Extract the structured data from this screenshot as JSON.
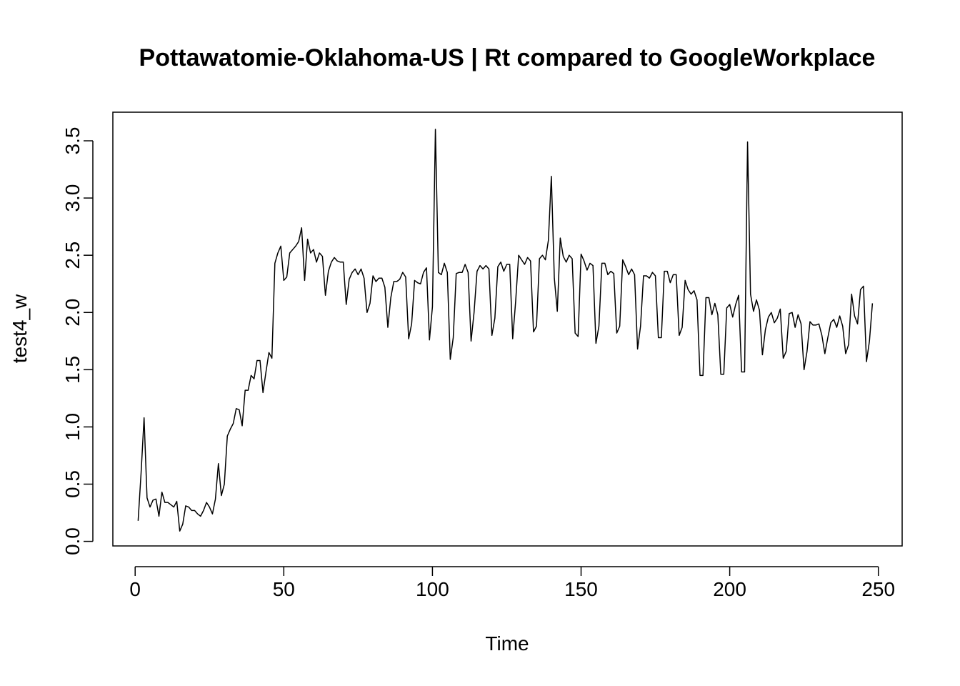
{
  "chart_data": {
    "type": "line",
    "title": "Pottawatomie-Oklahoma-US | Rt compared to GoogleWorkplace",
    "xlabel": "Time",
    "ylabel": "test4_w",
    "xlim": [
      -7.5,
      258
    ],
    "ylim": [
      -0.04,
      3.75
    ],
    "xticks": [
      0,
      50,
      100,
      150,
      200,
      250
    ],
    "yticks": [
      0.0,
      0.5,
      1.0,
      1.5,
      2.0,
      2.5,
      3.0,
      3.5
    ],
    "xtick_labels": [
      "0",
      "50",
      "100",
      "150",
      "200",
      "250"
    ],
    "ytick_labels": [
      "0.0",
      "0.5",
      "1.0",
      "1.5",
      "2.0",
      "2.5",
      "3.0",
      "3.5"
    ],
    "grid": false,
    "legend": "none",
    "series": [
      {
        "x": [
          1,
          2,
          3,
          4,
          5,
          6,
          7,
          8,
          9,
          10,
          11,
          12,
          13,
          14,
          15,
          16,
          17,
          18,
          19,
          20,
          21,
          22,
          23,
          24,
          25,
          26,
          27,
          28,
          29,
          30,
          31,
          32,
          33,
          34,
          35,
          36,
          37,
          38,
          39,
          40,
          41,
          42,
          43,
          44,
          45,
          46,
          47,
          48,
          49,
          50,
          51,
          52,
          53,
          54,
          55,
          56,
          57,
          58,
          59,
          60,
          61,
          62,
          63,
          64,
          65,
          66,
          67,
          68,
          69,
          70,
          71,
          72,
          73,
          74,
          75,
          76,
          77,
          78,
          79,
          80,
          81,
          82,
          83,
          84,
          85,
          86,
          87,
          88,
          89,
          90,
          91,
          92,
          93,
          94,
          95,
          96,
          97,
          98,
          99,
          100,
          101,
          102,
          103,
          104,
          105,
          106,
          107,
          108,
          109,
          110,
          111,
          112,
          113,
          114,
          115,
          116,
          117,
          118,
          119,
          120,
          121,
          122,
          123,
          124,
          125,
          126,
          127,
          128,
          129,
          130,
          131,
          132,
          133,
          134,
          135,
          136,
          137,
          138,
          139,
          140,
          141,
          142,
          143,
          144,
          145,
          146,
          147,
          148,
          149,
          150,
          151,
          152,
          153,
          154,
          155,
          156,
          157,
          158,
          159,
          160,
          161,
          162,
          163,
          164,
          165,
          166,
          167,
          168,
          169,
          170,
          171,
          172,
          173,
          174,
          175,
          176,
          177,
          178,
          179,
          180,
          181,
          182,
          183,
          184,
          185,
          186,
          187,
          188,
          189,
          190,
          191,
          192,
          193,
          194,
          195,
          196,
          197,
          198,
          199,
          200,
          201,
          202,
          203,
          204,
          205,
          206,
          207,
          208,
          209,
          210,
          211,
          212,
          213,
          214,
          215,
          216,
          217,
          218,
          219,
          220,
          221,
          222,
          223,
          224,
          225,
          226,
          227,
          228,
          229,
          230,
          231,
          232,
          233,
          234,
          235,
          236,
          237,
          238,
          239,
          240,
          241,
          242,
          243,
          244,
          245,
          246,
          247,
          248
        ],
        "y": [
          0.18,
          0.6,
          1.08,
          0.38,
          0.3,
          0.36,
          0.37,
          0.22,
          0.43,
          0.34,
          0.34,
          0.32,
          0.3,
          0.35,
          0.09,
          0.15,
          0.31,
          0.3,
          0.27,
          0.27,
          0.24,
          0.22,
          0.27,
          0.34,
          0.3,
          0.24,
          0.37,
          0.68,
          0.4,
          0.5,
          0.92,
          0.98,
          1.03,
          1.16,
          1.15,
          1.01,
          1.32,
          1.32,
          1.45,
          1.42,
          1.58,
          1.58,
          1.3,
          1.48,
          1.65,
          1.6,
          2.43,
          2.52,
          2.58,
          2.28,
          2.31,
          2.52,
          2.55,
          2.58,
          2.62,
          2.74,
          2.28,
          2.64,
          2.52,
          2.55,
          2.44,
          2.52,
          2.49,
          2.15,
          2.36,
          2.44,
          2.48,
          2.45,
          2.44,
          2.44,
          2.07,
          2.29,
          2.35,
          2.38,
          2.33,
          2.38,
          2.3,
          2.0,
          2.08,
          2.32,
          2.27,
          2.3,
          2.3,
          2.22,
          1.87,
          2.13,
          2.27,
          2.27,
          2.29,
          2.35,
          2.31,
          1.77,
          1.9,
          2.28,
          2.26,
          2.25,
          2.35,
          2.39,
          1.76,
          2.05,
          3.6,
          2.35,
          2.33,
          2.43,
          2.35,
          1.59,
          1.78,
          2.34,
          2.35,
          2.35,
          2.42,
          2.35,
          1.75,
          2.0,
          2.36,
          2.41,
          2.38,
          2.41,
          2.38,
          1.8,
          1.95,
          2.4,
          2.44,
          2.36,
          2.42,
          2.42,
          1.77,
          2.1,
          2.5,
          2.46,
          2.42,
          2.48,
          2.45,
          1.83,
          1.88,
          2.47,
          2.5,
          2.46,
          2.63,
          3.19,
          2.3,
          2.01,
          2.65,
          2.49,
          2.44,
          2.5,
          2.47,
          1.82,
          1.79,
          2.51,
          2.45,
          2.37,
          2.43,
          2.41,
          1.73,
          1.88,
          2.43,
          2.43,
          2.33,
          2.36,
          2.34,
          1.82,
          1.88,
          2.46,
          2.4,
          2.33,
          2.38,
          2.33,
          1.68,
          1.88,
          2.32,
          2.32,
          2.3,
          2.35,
          2.32,
          1.78,
          1.78,
          2.36,
          2.36,
          2.26,
          2.33,
          2.33,
          1.8,
          1.87,
          2.28,
          2.2,
          2.16,
          2.19,
          2.11,
          1.45,
          1.45,
          2.13,
          2.13,
          1.98,
          2.08,
          1.98,
          1.46,
          1.46,
          2.04,
          2.07,
          1.96,
          2.07,
          2.15,
          1.48,
          1.48,
          3.49,
          2.16,
          2.01,
          2.11,
          2.02,
          1.63,
          1.85,
          1.96,
          2.0,
          1.91,
          1.95,
          2.03,
          1.6,
          1.66,
          1.99,
          2.0,
          1.87,
          1.98,
          1.9,
          1.5,
          1.66,
          1.92,
          1.89,
          1.89,
          1.9,
          1.8,
          1.64,
          1.78,
          1.91,
          1.94,
          1.87,
          1.97,
          1.88,
          1.64,
          1.72,
          2.16,
          1.97,
          1.9,
          2.2,
          2.23,
          1.57,
          1.75,
          2.08
        ]
      }
    ]
  }
}
